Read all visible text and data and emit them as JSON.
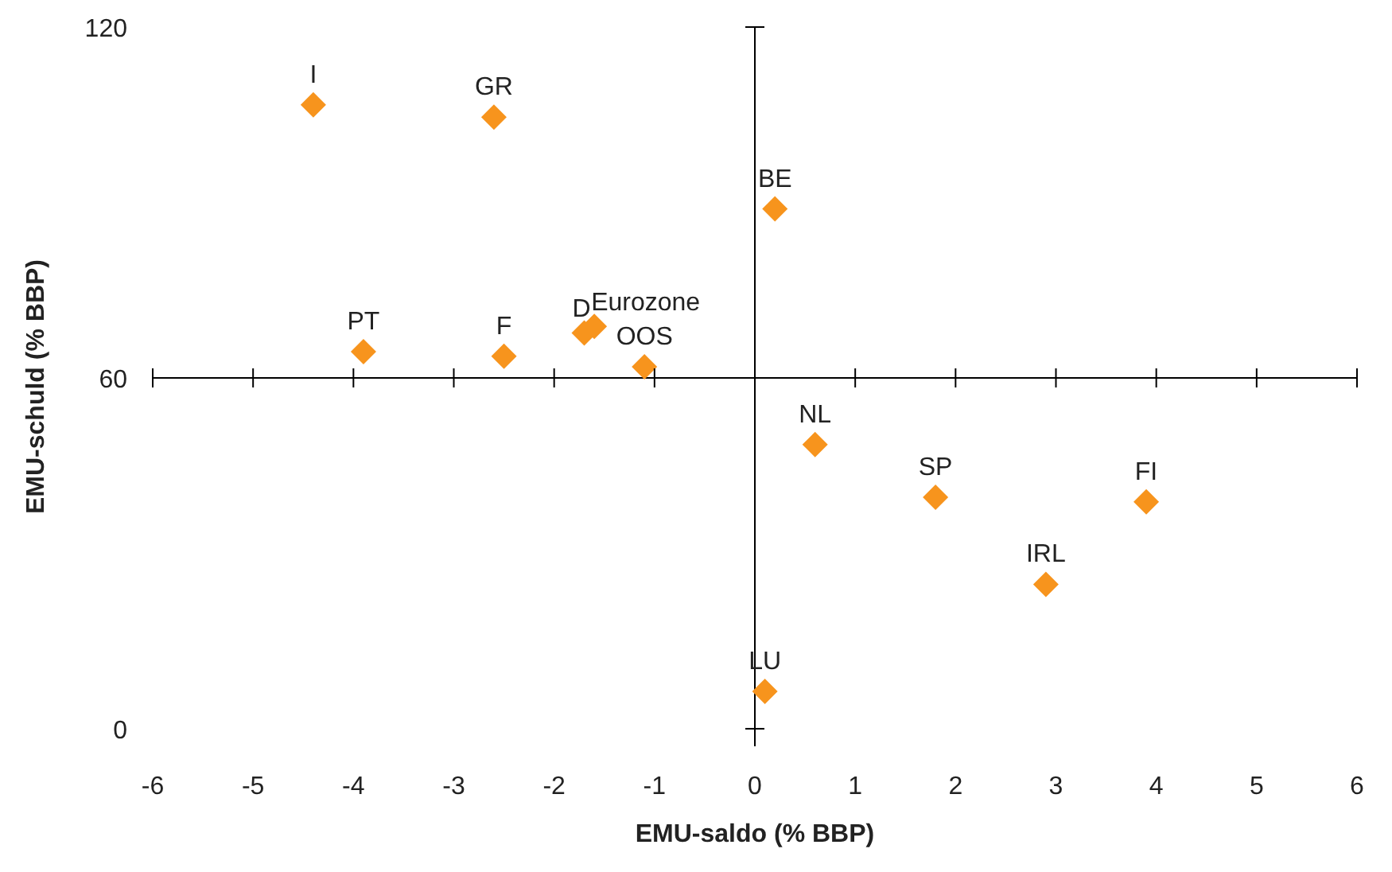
{
  "chart_data": {
    "type": "scatter",
    "xlabel": "EMU-saldo (% BBP)",
    "ylabel": "EMU-schuld (% BBP)",
    "x": [
      -4.4,
      -2.6,
      0.2,
      -3.9,
      -2.5,
      -1.7,
      -1.6,
      -1.1,
      0.6,
      1.8,
      3.9,
      2.9,
      0.1
    ],
    "series": [
      {
        "color": "#f7941d",
        "values": [
          106.7,
          104.6,
          88.9,
          64.5,
          63.7,
          67.7,
          68.8,
          61.9,
          48.6,
          39.6,
          38.8,
          24.7,
          6.4
        ]
      }
    ],
    "annotations": [
      {
        "text": "I",
        "x": -4.4,
        "y": 106.7
      },
      {
        "text": "GR",
        "x": -2.6,
        "y": 104.6
      },
      {
        "text": "BE",
        "x": 0.2,
        "y": 88.9
      },
      {
        "text": "PT",
        "x": -3.9,
        "y": 64.5
      },
      {
        "text": "F",
        "x": -2.5,
        "y": 63.7
      },
      {
        "text": "D",
        "x": -1.7,
        "y": 67.7
      },
      {
        "text": "Eurozone",
        "x": -1.6,
        "y": 68.8
      },
      {
        "text": "OOS",
        "x": -1.1,
        "y": 61.9
      },
      {
        "text": "NL",
        "x": 0.6,
        "y": 48.6
      },
      {
        "text": "SP",
        "x": 1.8,
        "y": 39.6
      },
      {
        "text": "FI",
        "x": 3.9,
        "y": 38.8
      },
      {
        "text": "IRL",
        "x": 2.9,
        "y": 24.7
      },
      {
        "text": "LU",
        "x": 0.1,
        "y": 6.4
      }
    ],
    "xlim": [
      -6,
      6
    ],
    "xticks": [
      -6,
      -5,
      -4,
      -3,
      -2,
      -1,
      0,
      1,
      2,
      3,
      4,
      5,
      6
    ],
    "ylim": [
      -3,
      120
    ],
    "yticks": [
      0,
      60,
      120
    ],
    "ref_lines": [
      {
        "axis": "y",
        "value": 60
      },
      {
        "axis": "x",
        "value": 0
      }
    ],
    "marker": "diamond",
    "grid": false,
    "legend": false
  }
}
